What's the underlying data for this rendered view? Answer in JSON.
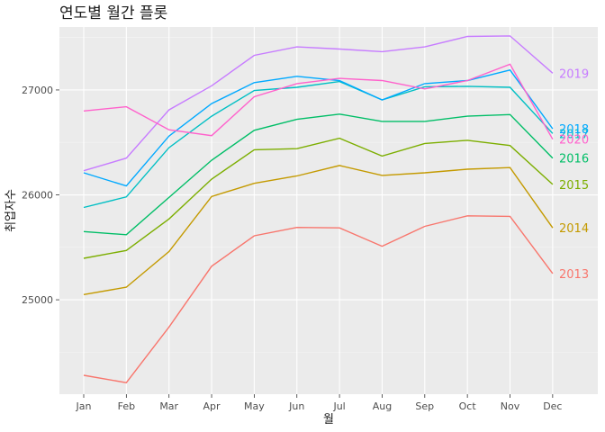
{
  "chart_data": {
    "type": "line",
    "title": "연도별 월간 플롯",
    "xlabel": "월",
    "ylabel": "취업자수",
    "categories": [
      "Jan",
      "Feb",
      "Mar",
      "Apr",
      "May",
      "Jun",
      "Jul",
      "Aug",
      "Sep",
      "Oct",
      "Nov",
      "Dec"
    ],
    "ylim": [
      24100,
      27600
    ],
    "yticks": [
      25000,
      26000,
      27000
    ],
    "grid": true,
    "legend": "direct labels at line ends",
    "series": [
      {
        "name": "2013",
        "color": "#F8766D",
        "values": [
          24280,
          24210,
          24740,
          25320,
          25610,
          25690,
          25685,
          25510,
          25700,
          25800,
          25795,
          25250
        ]
      },
      {
        "name": "2014",
        "color": "#C49A00",
        "values": [
          25050,
          25120,
          25460,
          25985,
          26110,
          26180,
          26280,
          26185,
          26210,
          26245,
          26260,
          25685
        ]
      },
      {
        "name": "2015",
        "color": "#7CAE00",
        "values": [
          25395,
          25470,
          25770,
          26150,
          26430,
          26440,
          26540,
          26370,
          26490,
          26520,
          26470,
          26100
        ]
      },
      {
        "name": "2016",
        "color": "#00BE67",
        "values": [
          25650,
          25620,
          25975,
          26330,
          26615,
          26720,
          26770,
          26700,
          26700,
          26750,
          26765,
          26350
        ]
      },
      {
        "name": "2017",
        "color": "#00BFC4",
        "values": [
          25880,
          25980,
          26450,
          26750,
          26995,
          27025,
          27080,
          26905,
          27030,
          27035,
          27025,
          26585
        ]
      },
      {
        "name": "2018",
        "color": "#00A9FF",
        "values": [
          26210,
          26085,
          26560,
          26870,
          27070,
          27130,
          27090,
          26905,
          27060,
          27090,
          27190,
          26630
        ]
      },
      {
        "name": "2019",
        "color": "#C77CFF",
        "values": [
          26230,
          26350,
          26810,
          27040,
          27330,
          27410,
          27390,
          27365,
          27410,
          27510,
          27515,
          27160
        ]
      },
      {
        "name": "2020",
        "color": "#FF61CC",
        "values": [
          26800,
          26840,
          26620,
          26565,
          26935,
          27060,
          27110,
          27090,
          27010,
          27090,
          27245,
          26530
        ]
      }
    ]
  }
}
